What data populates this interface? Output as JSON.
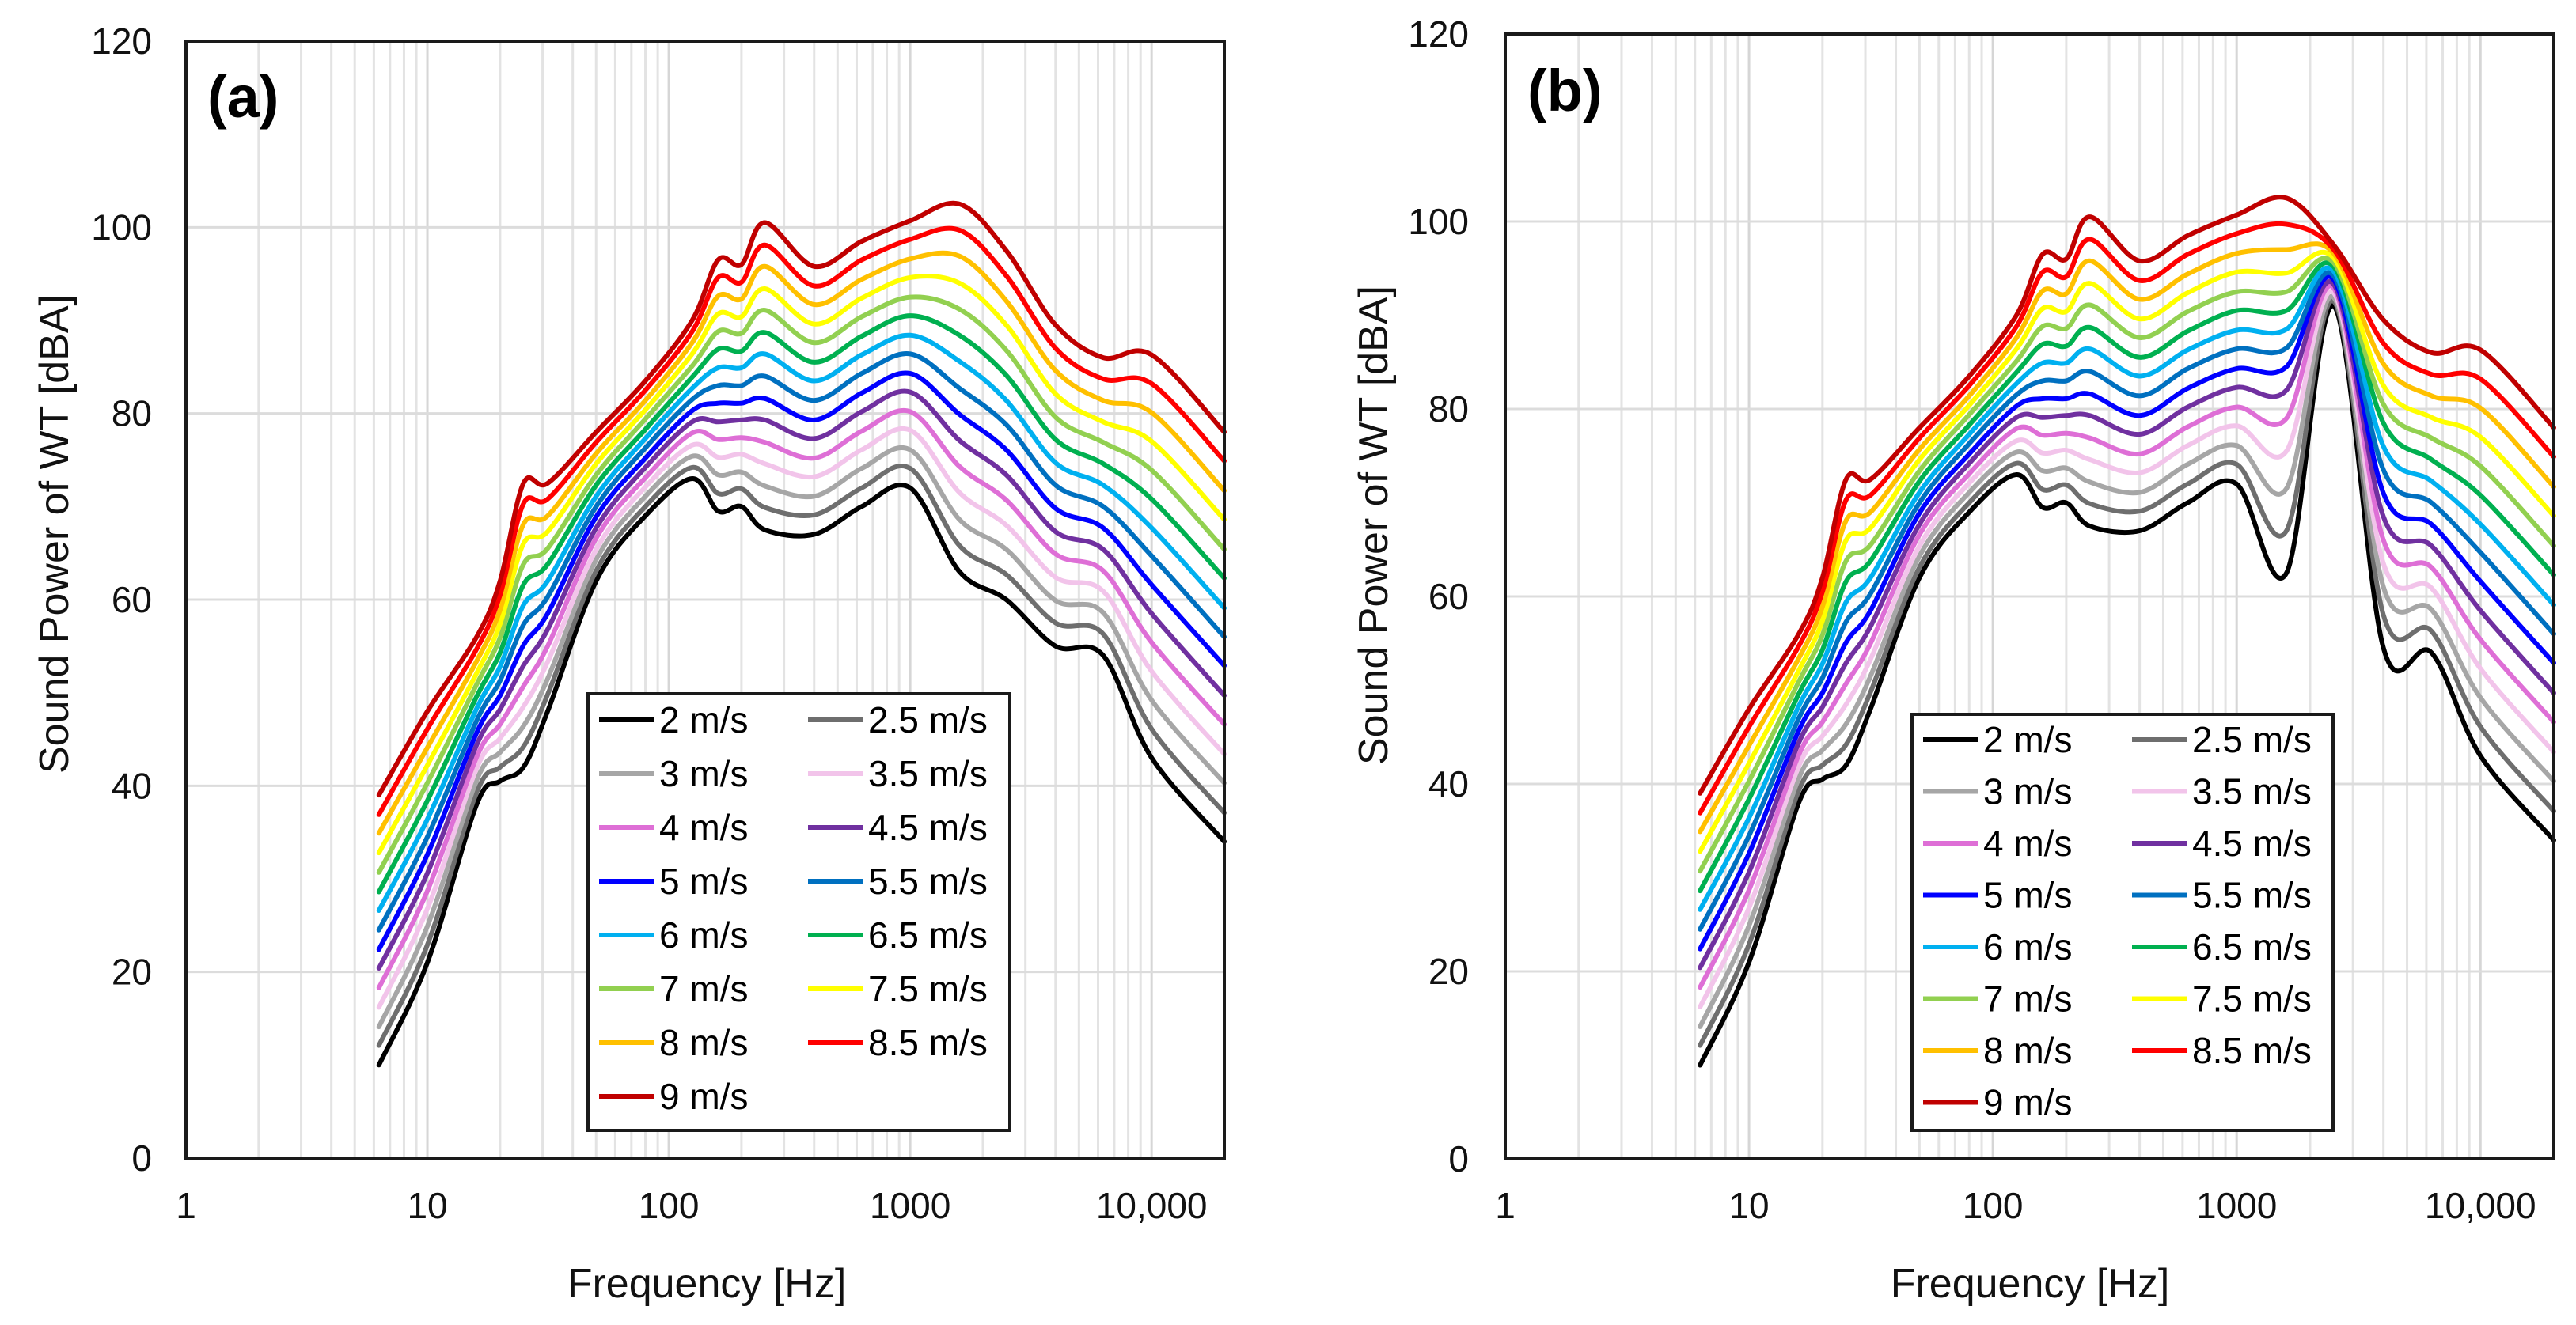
{
  "chart_data": [
    {
      "type": "line",
      "panel_label": "(a)",
      "xlabel": "Frequency  [Hz]",
      "ylabel": "Sound Power of WT [dBA]",
      "xscale": "log",
      "xlim": [
        1,
        20000
      ],
      "ylim": [
        0,
        120
      ],
      "xticks": [
        1,
        10,
        100,
        1000,
        10000
      ],
      "xtick_labels": [
        "1",
        "10",
        "100",
        "1000",
        "10,000"
      ],
      "yticks": [
        0,
        20,
        40,
        60,
        80,
        100,
        120
      ],
      "ytick_labels": [
        "0",
        "20",
        "40",
        "60",
        "80",
        "100",
        "120"
      ],
      "grid": true,
      "legend_position": "bottom-center",
      "x": [
        6.3,
        10,
        16,
        20,
        25,
        31.5,
        50,
        80,
        125,
        160,
        200,
        250,
        400,
        630,
        1000,
        1600,
        2500,
        4000,
        6300,
        10000,
        20000
      ],
      "series": [
        {
          "name": "2 m/s",
          "color": "#000000",
          "values": [
            10,
            21,
            38,
            40.5,
            42,
            48,
            62,
            69,
            73,
            69.5,
            70,
            67.5,
            67,
            70,
            72,
            63,
            60,
            55,
            54,
            43,
            34
          ]
        },
        {
          "name": "2.5 m/s",
          "color": "#6e6e6e",
          "values": [
            12.1,
            22.9,
            39.3,
            42,
            44.2,
            49.8,
            63.1,
            70,
            74.2,
            71.4,
            71.9,
            69.9,
            69.1,
            72,
            74.1,
            65.8,
            62.7,
            57.5,
            56.3,
            46.1,
            37.1
          ]
        },
        {
          "name": "3 m/s",
          "color": "#a6a6a6",
          "values": [
            14.1,
            24.9,
            40.6,
            43.6,
            46.4,
            51.5,
            64.3,
            71.1,
            75.4,
            73.4,
            73.7,
            72.2,
            71.1,
            74.1,
            76.1,
            68.6,
            65.4,
            59.9,
            58.6,
            49.2,
            40.3
          ]
        },
        {
          "name": "3.5 m/s",
          "color": "#f2c4ea",
          "values": [
            16.2,
            26.8,
            41.9,
            45.1,
            48.5,
            53.3,
            65.4,
            72.1,
            76.6,
            75.3,
            75.6,
            74.6,
            73.2,
            76.1,
            78.2,
            71.5,
            68,
            62.4,
            60.9,
            52.3,
            43.4
          ]
        },
        {
          "name": "4 m/s",
          "color": "#de6fd6",
          "values": [
            18.3,
            28.7,
            43.1,
            46.6,
            50.7,
            55,
            66.6,
            73.1,
            77.9,
            77.2,
            77.4,
            76.9,
            75.2,
            78.1,
            80.2,
            74.3,
            70.7,
            64.9,
            63.1,
            55.4,
            46.6
          ]
        },
        {
          "name": "4.5 m/s",
          "color": "#7030a0",
          "values": [
            20.4,
            30.6,
            44.4,
            48.2,
            52.9,
            56.8,
            67.7,
            74.2,
            79.1,
            79.1,
            79.3,
            79.3,
            77.3,
            80.2,
            82.3,
            77.1,
            73.4,
            67.3,
            65.4,
            58.5,
            49.7
          ]
        },
        {
          "name": "5 m/s",
          "color": "#0000ff",
          "values": [
            22.4,
            32.6,
            45.7,
            49.7,
            55.1,
            58.5,
            68.9,
            75.2,
            80.3,
            81.1,
            81.1,
            81.6,
            79.3,
            82.2,
            84.3,
            79.9,
            76.1,
            69.8,
            67.7,
            61.6,
            52.9
          ]
        },
        {
          "name": "5.5 m/s",
          "color": "#0070c0",
          "values": [
            24.5,
            34.5,
            47,
            51.3,
            57.3,
            60.3,
            70,
            76.3,
            81.5,
            83,
            83,
            84,
            81.4,
            84.3,
            86.4,
            82.7,
            78.8,
            72.3,
            70,
            64.7,
            56
          ]
        },
        {
          "name": "6 m/s",
          "color": "#00b0f0",
          "values": [
            26.6,
            36.4,
            48.3,
            52.8,
            59.4,
            62,
            71.1,
            77.3,
            82.7,
            84.9,
            84.9,
            86.4,
            83.5,
            86.3,
            88.4,
            85.6,
            81.4,
            74.7,
            72.3,
            67.7,
            59.1
          ]
        },
        {
          "name": "6.5 m/s",
          "color": "#00b050",
          "values": [
            28.6,
            38.4,
            49.6,
            54.3,
            61.6,
            63.8,
            72.3,
            78.3,
            83.9,
            86.9,
            86.7,
            88.7,
            85.5,
            88.3,
            90.5,
            88.4,
            84.1,
            77.2,
            74.6,
            70.8,
            62.3
          ]
        },
        {
          "name": "7 m/s",
          "color": "#92d050",
          "values": [
            30.7,
            40.3,
            50.9,
            55.9,
            63.8,
            65.5,
            73.4,
            79.4,
            85.1,
            88.8,
            88.6,
            91.1,
            87.6,
            90.4,
            92.5,
            91.2,
            86.8,
            79.6,
            76.9,
            73.9,
            65.4
          ]
        },
        {
          "name": "7.5 m/s",
          "color": "#ffff00",
          "values": [
            32.8,
            42.2,
            52.1,
            57.4,
            66,
            67.3,
            74.6,
            80.4,
            86.4,
            90.7,
            90.4,
            93.4,
            89.6,
            92.4,
            94.6,
            94,
            89.5,
            82.1,
            79.1,
            77,
            68.6
          ]
        },
        {
          "name": "8 m/s",
          "color": "#ffc000",
          "values": [
            34.9,
            44.1,
            53.4,
            58.9,
            68.1,
            69,
            75.7,
            81.4,
            87.6,
            92.6,
            92.3,
            95.8,
            91.7,
            94.4,
            96.6,
            96.9,
            92.1,
            84.6,
            81.4,
            80.1,
            71.7
          ]
        },
        {
          "name": "8.5 m/s",
          "color": "#ff0000",
          "values": [
            36.9,
            46.1,
            54.7,
            60.5,
            70.3,
            70.8,
            76.9,
            82.5,
            88.8,
            94.6,
            94.1,
            98.1,
            93.7,
            96.5,
            98.7,
            99.7,
            94.8,
            87,
            83.7,
            83.2,
            74.9
          ]
        },
        {
          "name": "9 m/s",
          "color": "#c00000",
          "values": [
            39,
            48,
            56,
            62,
            72.5,
            72.5,
            78,
            83.5,
            90,
            96.5,
            96,
            100.5,
            95.8,
            98.5,
            100.7,
            102.5,
            97.5,
            89.5,
            86,
            86.3,
            78
          ]
        }
      ]
    },
    {
      "type": "line",
      "panel_label": "(b)",
      "xlabel": "Frequency  [Hz]",
      "ylabel": "Sound Power of WT [dBA]",
      "xscale": "log",
      "xlim": [
        1,
        20000
      ],
      "ylim": [
        0,
        120
      ],
      "xticks": [
        1,
        10,
        100,
        1000,
        10000
      ],
      "xtick_labels": [
        "1",
        "10",
        "100",
        "1000",
        "10,000"
      ],
      "yticks": [
        0,
        20,
        40,
        60,
        80,
        100,
        120
      ],
      "ytick_labels": [
        "0",
        "20",
        "40",
        "60",
        "80",
        "100",
        "120"
      ],
      "grid": true,
      "legend_position": "bottom-center",
      "x": [
        6.3,
        10,
        16,
        20,
        25,
        31.5,
        50,
        80,
        125,
        160,
        200,
        250,
        400,
        630,
        1000,
        1600,
        2500,
        4000,
        6300,
        10000,
        20000
      ],
      "series": [
        {
          "name": "2 m/s",
          "color": "#000000",
          "values": [
            10,
            21,
            38,
            40.5,
            42,
            48,
            62,
            69,
            73,
            69.5,
            70,
            67.5,
            67,
            70,
            72,
            62.5,
            91,
            54.5,
            54,
            43,
            34
          ]
        },
        {
          "name": "2.5 m/s",
          "color": "#6e6e6e",
          "values": [
            12.1,
            22.9,
            39.3,
            42,
            44.2,
            49.8,
            63.1,
            70,
            74.2,
            71.4,
            71.9,
            69.9,
            69.1,
            72,
            74.1,
            67,
            91.5,
            58,
            56.3,
            46.1,
            37.1
          ]
        },
        {
          "name": "3 m/s",
          "color": "#a6a6a6",
          "values": [
            14.1,
            24.9,
            40.6,
            43.6,
            46.4,
            51.5,
            64.3,
            71.1,
            75.4,
            73.4,
            73.7,
            72.2,
            71.1,
            74.1,
            76.1,
            71.5,
            91.9,
            61,
            58.6,
            49.2,
            40.3
          ]
        },
        {
          "name": "3.5 m/s",
          "color": "#f2c4ea",
          "values": [
            16.2,
            26.8,
            41.9,
            45.1,
            48.5,
            53.3,
            65.4,
            72.1,
            76.6,
            75.3,
            75.6,
            74.6,
            73.2,
            76.1,
            78.2,
            75.5,
            92.4,
            63.5,
            60.9,
            52.3,
            43.4
          ]
        },
        {
          "name": "4 m/s",
          "color": "#de6fd6",
          "values": [
            18.3,
            28.7,
            43.1,
            46.6,
            50.7,
            55,
            66.6,
            73.1,
            77.9,
            77.2,
            77.4,
            76.9,
            75.2,
            78.1,
            80.2,
            79,
            92.9,
            66,
            63.1,
            55.4,
            46.6
          ]
        },
        {
          "name": "4.5 m/s",
          "color": "#7030a0",
          "values": [
            20.4,
            30.6,
            44.4,
            48.2,
            52.9,
            56.8,
            67.7,
            74.2,
            79.1,
            79.1,
            79.3,
            79.3,
            77.3,
            80.2,
            82.3,
            82,
            93.3,
            68.5,
            65.4,
            58.5,
            49.7
          ]
        },
        {
          "name": "5 m/s",
          "color": "#0000ff",
          "values": [
            22.4,
            32.6,
            45.7,
            49.7,
            55.1,
            58.5,
            68.9,
            75.2,
            80.3,
            81.1,
            81.1,
            81.6,
            79.3,
            82.2,
            84.3,
            84.5,
            93.8,
            71,
            67.7,
            61.6,
            52.9
          ]
        },
        {
          "name": "5.5 m/s",
          "color": "#0070c0",
          "values": [
            24.5,
            34.5,
            47,
            51.3,
            57.3,
            60.3,
            70,
            76.3,
            81.5,
            83,
            83,
            84,
            81.4,
            84.3,
            86.4,
            86.5,
            94.2,
            73.5,
            70,
            64.7,
            56
          ]
        },
        {
          "name": "6 m/s",
          "color": "#00b0f0",
          "values": [
            26.6,
            36.4,
            48.3,
            52.8,
            59.4,
            62,
            71.1,
            77.3,
            82.7,
            84.9,
            84.9,
            86.4,
            83.5,
            86.3,
            88.4,
            88.5,
            94.7,
            76,
            72.3,
            67.7,
            59.1
          ]
        },
        {
          "name": "6.5 m/s",
          "color": "#00b050",
          "values": [
            28.6,
            38.4,
            49.6,
            54.3,
            61.6,
            63.8,
            72.3,
            78.3,
            83.9,
            86.9,
            86.7,
            88.7,
            85.5,
            88.3,
            90.5,
            90.5,
            95.2,
            78.5,
            74.6,
            70.8,
            62.3
          ]
        },
        {
          "name": "7 m/s",
          "color": "#92d050",
          "values": [
            30.7,
            40.3,
            50.9,
            55.9,
            63.8,
            65.5,
            73.4,
            79.4,
            85.1,
            88.8,
            88.6,
            91.1,
            87.6,
            90.4,
            92.5,
            92.5,
            95.6,
            80.5,
            76.9,
            73.9,
            65.4
          ]
        },
        {
          "name": "7.5 m/s",
          "color": "#ffff00",
          "values": [
            32.8,
            42.2,
            52.1,
            57.4,
            66,
            67.3,
            74.6,
            80.4,
            86.4,
            90.7,
            90.4,
            93.4,
            89.6,
            92.4,
            94.6,
            94.5,
            96.1,
            82.5,
            79.1,
            77,
            68.6
          ]
        },
        {
          "name": "8 m/s",
          "color": "#ffc000",
          "values": [
            34.9,
            44.1,
            53.4,
            58.9,
            68.1,
            69,
            75.7,
            81.4,
            87.6,
            92.6,
            92.3,
            95.8,
            91.7,
            94.4,
            96.6,
            97,
            96.6,
            84.8,
            81.4,
            80.1,
            71.7
          ]
        },
        {
          "name": "8.5 m/s",
          "color": "#ff0000",
          "values": [
            36.9,
            46.1,
            54.7,
            60.5,
            70.3,
            70.8,
            76.9,
            82.5,
            88.8,
            94.6,
            94.1,
            98.1,
            93.7,
            96.5,
            98.7,
            99.7,
            97,
            87,
            83.7,
            83.2,
            74.9
          ]
        },
        {
          "name": "9 m/s",
          "color": "#c00000",
          "values": [
            39,
            48,
            56,
            62,
            72.5,
            72.5,
            78,
            83.5,
            90,
            96.5,
            96,
            100.5,
            95.8,
            98.5,
            100.7,
            102.5,
            97.5,
            89.5,
            86,
            86.3,
            78
          ]
        }
      ]
    }
  ]
}
